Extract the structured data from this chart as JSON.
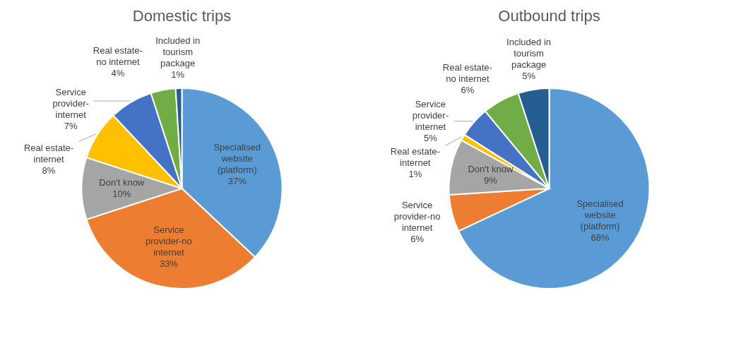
{
  "chart_data": [
    {
      "type": "pie",
      "title": "Domestic trips",
      "categories": [
        "Specialised website (platform)",
        "Service provider-no internet",
        "Don't know",
        "Real estate-internet",
        "Service provider-internet",
        "Real estate-no internet",
        "Included in tourism package"
      ],
      "values": [
        37,
        33,
        10,
        8,
        7,
        4,
        1
      ],
      "value_labels": [
        "37%",
        "33%",
        "10%",
        "8%",
        "7%",
        "4%",
        "1%"
      ],
      "colors": [
        "#5b9bd5",
        "#ed7d31",
        "#a5a5a5",
        "#ffc000",
        "#4472c4",
        "#70ad47",
        "#255e91"
      ],
      "legend": false
    },
    {
      "type": "pie",
      "title": "Outbound trips",
      "categories": [
        "Specialised website (platform)",
        "Service provider-no internet",
        "Don't know",
        "Real estate-internet",
        "Service provider-internet",
        "Real estate-no internet",
        "Included in tourism package"
      ],
      "values": [
        68,
        6,
        9,
        1,
        5,
        6,
        5
      ],
      "value_labels": [
        "68%",
        "6%",
        "9%",
        "1%",
        "5%",
        "6%",
        "5%"
      ],
      "colors": [
        "#5b9bd5",
        "#ed7d31",
        "#a5a5a5",
        "#ffc000",
        "#4472c4",
        "#70ad47",
        "#255e91"
      ],
      "legend": false
    }
  ]
}
